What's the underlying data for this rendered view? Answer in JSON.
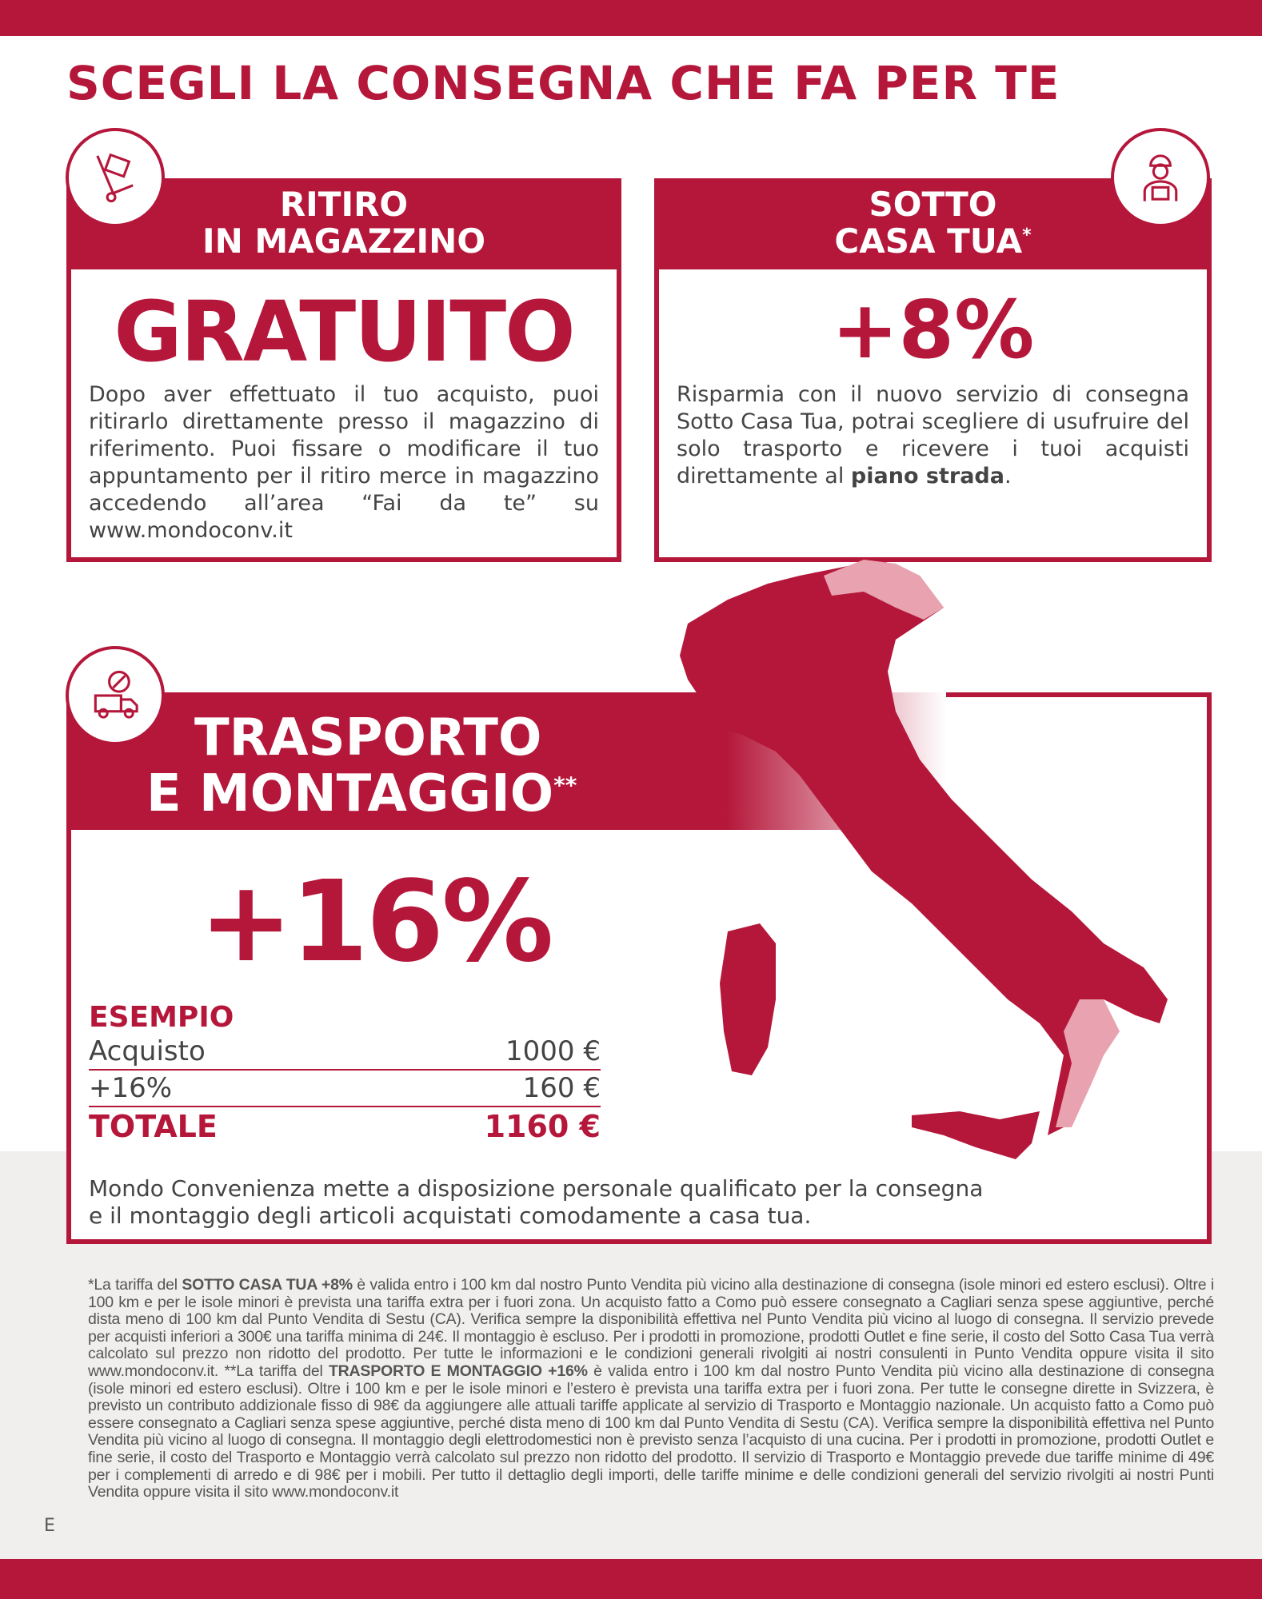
{
  "title": "SCEGLI LA CONSEGNA CHE FA PER TE",
  "colors": {
    "brand": "#b5173a",
    "footnote_bg": "#f0efed"
  },
  "card_ritiro": {
    "head_line1": "RITIRO",
    "head_line2": "IN MAGAZZINO",
    "price": "GRATUITO",
    "icon": "hand-truck-box-icon",
    "text": "Dopo aver effettuato il tuo acquisto, puoi ritirarlo direttamente presso il magazzino di riferimento. Puoi fissare o modificare il tuo appuntamento per il ritiro merce in magazzino accedendo all’area “Fai da te” su www.mondoconv.it"
  },
  "card_sotto": {
    "head_line1": "SOTTO",
    "head_line2": "CASA TUA",
    "mark": "*",
    "price": "+8%",
    "icon": "delivery-person-icon",
    "text_before": "Risparmia con il nuovo servizio di consegna Sotto Casa Tua, potrai scegliere di usufruire del solo trasporto e ricevere i tuoi acquisti direttamente al ",
    "text_bold": "piano strada",
    "text_after": "."
  },
  "card_trasporto": {
    "head_line1": "TRASPORTO",
    "head_line2": "E MONTAGGIO",
    "mark": "**",
    "price": "+16%",
    "icon": "truck-tools-icon",
    "example_label": "ESEMPIO",
    "rows": [
      {
        "label": "Acquisto",
        "value": "1000 €"
      },
      {
        "label": "+16%",
        "value": "160 €"
      }
    ],
    "total_label": "TOTALE",
    "total_value": "1160 €",
    "text": "Mondo Convenienza mette a disposizione personale qualificato per la consegna e il montaggio degli articoli acquistati comodamente a casa tua."
  },
  "footnote": {
    "p1_pre": "*La tariffa del ",
    "p1_bold": "SOTTO CASA TUA +8%",
    "p1_text": " è valida entro i 100 km dal nostro Punto Vendita più vicino alla destinazione di consegna (isole minori ed estero esclusi). Oltre i 100 km e per le isole minori è prevista una tariffa extra per i fuori zona. Un acquisto fatto a Como può essere consegnato a Cagliari senza spese aggiuntive, perché dista meno di 100 km dal Punto Vendita di Sestu (CA). Verifica sempre la disponibilità effettiva nel Punto Vendita più vicino al luogo di consegna. Il servizio prevede per acquisti inferiori a 300€ una tariffa minima di 24€. Il montaggio è escluso. Per i prodotti in promozione, prodotti Outlet e fine serie, il costo del Sotto Casa Tua verrà calcolato sul prezzo non ridotto del prodotto. Per tutte le informazioni e le condizioni generali rivolgiti ai nostri consulenti in Punto Vendita oppure visita il sito www.mondoconv.it. ",
    "p2_pre": "**La tariffa del ",
    "p2_bold": "TRASPORTO E MONTAGGIO +16%",
    "p2_text": " è valida entro i 100 km dal nostro Punto Vendita più vicino alla destinazione di consegna (isole minori ed estero esclusi). Oltre i 100 km e per le isole minori e l’estero è prevista una tariffa extra per i fuori zona. Per tutte le consegne dirette in Svizzera, è previsto un contributo addizionale fisso di 98€ da aggiungere alle attuali tariffe applicate al servizio di Trasporto e Montaggio nazionale. Un acquisto fatto a Como può essere consegnato a Cagliari senza spese aggiuntive, perché dista meno di 100 km dal Punto Vendita di Sestu (CA). Verifica sempre la disponibilità effettiva nel Punto Vendita più vicino al luogo di consegna. Il montaggio degli elettrodomestici non è previsto senza l’acquisto di una cucina. Per i prodotti in promozione, prodotti Outlet e fine serie, il costo del Trasporto e Montaggio verrà calcolato sul prezzo non ridotto del prodotto. Il servizio di Trasporto e Montaggio prevede due tariffe minime di 49€ per i complementi di arredo e di 98€ per i mobili. Per tutto il dettaglio degli importi, delle tariffe minime e delle condizioni generali del servizio rivolgiti ai nostri Punti Vendita oppure visita il sito www.mondoconv.it"
  },
  "page_letter": "E"
}
